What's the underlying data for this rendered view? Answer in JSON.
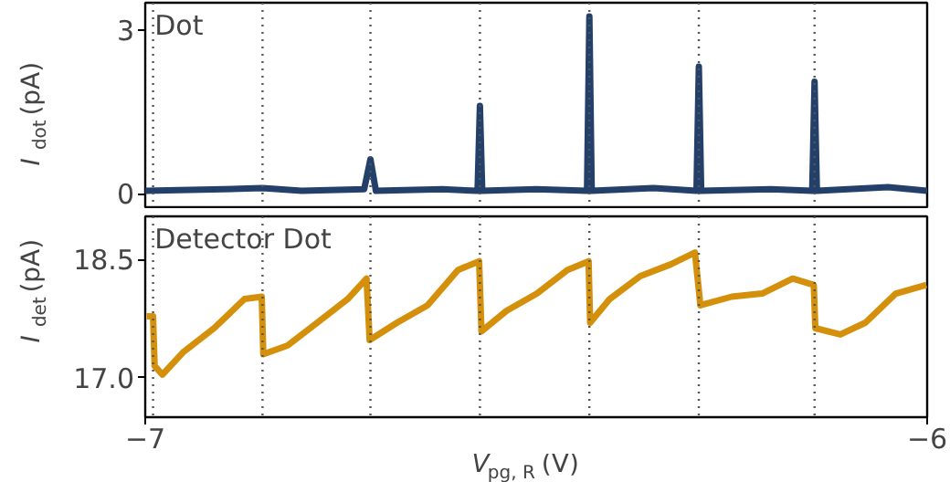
{
  "chart_data": [
    {
      "type": "line",
      "ylabel": "I$_{dot}$ (pA)",
      "annotations": [
        "Dot"
      ],
      "tick_labels": "y",
      "xlim": [
        -7,
        -6
      ],
      "ylim": [
        -0.25,
        3.5
      ],
      "yticks": [
        0,
        3
      ],
      "x": [
        -7,
        -6.9,
        -6.85,
        -6.8,
        -6.72,
        -6.712,
        -6.705,
        -6.62,
        -6.575,
        -6.572,
        -6.569,
        -6.5,
        -6.435,
        -6.432,
        -6.429,
        -6.35,
        -6.295,
        -6.292,
        -6.289,
        -6.2,
        -6.147,
        -6.144,
        -6.141,
        -6.05,
        -6.0
      ],
      "series": [
        {
          "color": "#23406b",
          "values": [
            0.05,
            0.08,
            0.1,
            0.05,
            0.08,
            0.63,
            0.05,
            0.08,
            0.05,
            1.61,
            0.05,
            0.08,
            0.05,
            3.25,
            0.05,
            0.1,
            0.05,
            2.33,
            0.05,
            0.08,
            0.05,
            2.05,
            0.05,
            0.12,
            0.05
          ]
        }
      ],
      "ref_lines": [
        {
          "axis": "x",
          "value": -6.99,
          "color": "#555555",
          "line_style": "dotted"
        },
        {
          "axis": "x",
          "value": -6.85,
          "color": "#555555",
          "line_style": "dotted"
        },
        {
          "axis": "x",
          "value": -6.712,
          "color": "#555555",
          "line_style": "dotted"
        },
        {
          "axis": "x",
          "value": -6.572,
          "color": "#555555",
          "line_style": "dotted"
        },
        {
          "axis": "x",
          "value": -6.432,
          "color": "#555555",
          "line_style": "dotted"
        },
        {
          "axis": "x",
          "value": -6.292,
          "color": "#555555",
          "line_style": "dotted"
        },
        {
          "axis": "x",
          "value": -6.144,
          "color": "#555555",
          "line_style": "dotted"
        }
      ]
    },
    {
      "type": "line",
      "ylabel": "I$_{det}$ (pA)",
      "xlabel": "V$_{pg, R}$ (V)",
      "annotations": [
        "Detector Dot"
      ],
      "xlim": [
        -7,
        -6
      ],
      "ylim": [
        16.5,
        19.05
      ],
      "xticks": [
        {
          "value": -7,
          "label": "−7"
        },
        {
          "value": -6,
          "label": "−6"
        }
      ],
      "yticks": [
        {
          "value": 17,
          "label": "17.0"
        },
        18.5
      ],
      "x": [
        -6.998,
        -6.99,
        -6.988,
        -6.978,
        -6.951,
        -6.912,
        -6.873,
        -6.851,
        -6.849,
        -6.818,
        -6.78,
        -6.741,
        -6.717,
        -6.713,
        -6.678,
        -6.639,
        -6.6,
        -6.573,
        -6.57,
        -6.538,
        -6.499,
        -6.46,
        -6.433,
        -6.431,
        -6.406,
        -6.367,
        -6.328,
        -6.297,
        -6.29,
        -6.25,
        -6.211,
        -6.172,
        -6.145,
        -6.143,
        -6.111,
        -6.079,
        -6.04,
        -6.001
      ],
      "series": [
        {
          "color": "#d4900a",
          "values": [
            17.78,
            17.78,
            17.15,
            17.04,
            17.33,
            17.63,
            18.0,
            18.03,
            17.3,
            17.41,
            17.7,
            18.0,
            18.26,
            17.48,
            17.7,
            17.92,
            18.37,
            18.48,
            17.59,
            17.85,
            18.07,
            18.37,
            18.48,
            17.7,
            18.0,
            18.29,
            18.44,
            18.59,
            17.92,
            18.03,
            18.07,
            18.26,
            18.18,
            17.63,
            17.55,
            17.7,
            18.07,
            18.18
          ]
        }
      ],
      "ref_lines": [
        {
          "axis": "x",
          "value": -6.99,
          "color": "#555555",
          "line_style": "dotted"
        },
        {
          "axis": "x",
          "value": -6.85,
          "color": "#555555",
          "line_style": "dotted"
        },
        {
          "axis": "x",
          "value": -6.712,
          "color": "#555555",
          "line_style": "dotted"
        },
        {
          "axis": "x",
          "value": -6.572,
          "color": "#555555",
          "line_style": "dotted"
        },
        {
          "axis": "x",
          "value": -6.432,
          "color": "#555555",
          "line_style": "dotted"
        },
        {
          "axis": "x",
          "value": -6.292,
          "color": "#555555",
          "line_style": "dotted"
        },
        {
          "axis": "x",
          "value": -6.144,
          "color": "#555555",
          "line_style": "dotted"
        }
      ]
    }
  ]
}
